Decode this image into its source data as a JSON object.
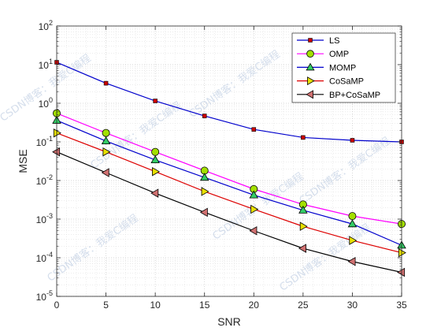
{
  "chart_data": {
    "type": "line",
    "title": "",
    "xlabel": "SNR",
    "ylabel": "MSE",
    "yscale": "log",
    "xlim": [
      0,
      35
    ],
    "ylim": [
      1e-05,
      100
    ],
    "grid": true,
    "minor_grid": true,
    "legend_position": "top-right",
    "x": [
      0,
      5,
      10,
      15,
      20,
      25,
      30,
      35
    ],
    "x_ticks": [
      "0",
      "5",
      "10",
      "15",
      "20",
      "25",
      "30",
      "35"
    ],
    "y_ticks": [
      {
        "base": "10",
        "exp": "2"
      },
      {
        "base": "10",
        "exp": "1"
      },
      {
        "base": "10",
        "exp": "0"
      },
      {
        "base": "10",
        "exp": "-1"
      },
      {
        "base": "10",
        "exp": "-2"
      },
      {
        "base": "10",
        "exp": "-3"
      },
      {
        "base": "10",
        "exp": "-4"
      },
      {
        "base": "10",
        "exp": "-5"
      }
    ],
    "series": [
      {
        "name": "LS",
        "color": "#0000cc",
        "marker": "square",
        "marker_color": "#cc0000",
        "values": [
          11.5,
          3.3,
          1.15,
          0.47,
          0.21,
          0.13,
          0.11,
          0.1
        ]
      },
      {
        "name": "OMP",
        "color": "#ff00ff",
        "marker": "circle",
        "marker_color": "#a3e000",
        "values": [
          0.55,
          0.17,
          0.055,
          0.018,
          0.006,
          0.0024,
          0.0012,
          0.00075
        ]
      },
      {
        "name": "MOMP",
        "color": "#0000cc",
        "marker": "triangle-up",
        "marker_color": "#33cc66",
        "values": [
          0.36,
          0.105,
          0.034,
          0.012,
          0.0042,
          0.0017,
          0.00075,
          0.00021
        ]
      },
      {
        "name": "CoSaMP",
        "color": "#dd0000",
        "marker": "triangle-right",
        "marker_color": "#e8e000",
        "values": [
          0.17,
          0.055,
          0.017,
          0.0052,
          0.0018,
          0.00065,
          0.00028,
          0.000135
        ]
      },
      {
        "name": "BP+CoSaMP",
        "color": "#000000",
        "marker": "triangle-left",
        "marker_color": "#d07070",
        "values": [
          0.055,
          0.016,
          0.0047,
          0.0015,
          0.0005,
          0.000175,
          8e-05,
          4.2e-05
        ]
      }
    ]
  },
  "watermark": {
    "text": "CSDN博客：我爱C编程"
  }
}
